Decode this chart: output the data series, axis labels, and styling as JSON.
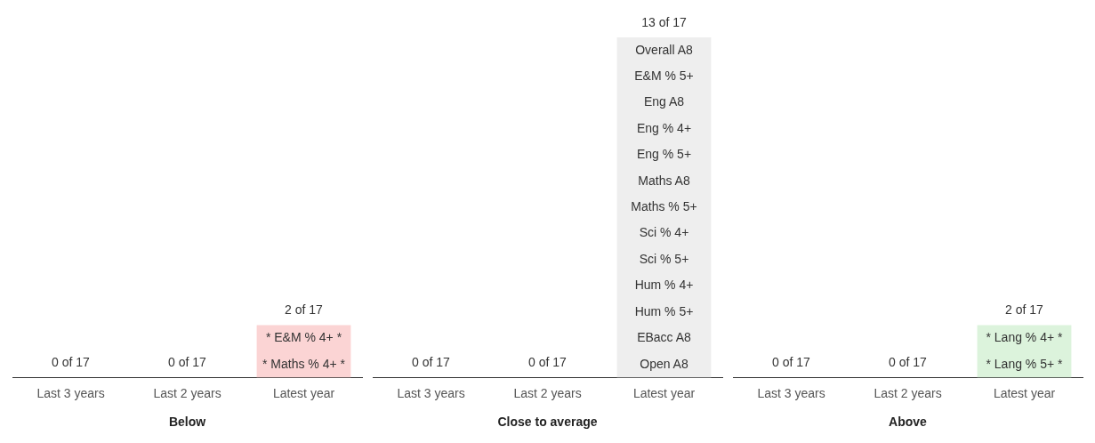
{
  "chart_data": [
    {
      "type": "bar",
      "xlabel": "Below",
      "categories": [
        "Last 3 years",
        "Last 2 years",
        "Latest year"
      ],
      "values": [
        0,
        0,
        2
      ],
      "colors": [
        "#fbd4d4",
        "#fbd4d4",
        "#fbd4d4"
      ],
      "value_labels": [
        "0 of 17",
        "0 of 17",
        "2 of 17"
      ],
      "tick_labels": "x",
      "grid": false,
      "legend": false,
      "annotations": [
        "* E&M % 4+ *",
        "* Maths % 4+ *"
      ]
    },
    {
      "type": "bar",
      "xlabel": "Close to average",
      "categories": [
        "Last 3 years",
        "Last 2 years",
        "Latest year"
      ],
      "values": [
        0,
        0,
        13
      ],
      "colors": [
        "#eeeeee",
        "#eeeeee",
        "#eeeeee"
      ],
      "value_labels": [
        "0 of 17",
        "0 of 17",
        "13 of 17"
      ],
      "tick_labels": "x",
      "grid": false,
      "legend": false,
      "annotations": [
        "Overall A8",
        "E&M % 5+",
        "Eng A8",
        "Eng % 4+",
        "Eng % 5+",
        "Maths A8",
        "Maths % 5+",
        "Sci % 4+",
        "Sci % 5+",
        "Hum % 4+",
        "Hum % 5+",
        "EBacc A8",
        "Open A8"
      ]
    },
    {
      "type": "bar",
      "xlabel": "Above",
      "categories": [
        "Last 3 years",
        "Last 2 years",
        "Latest year"
      ],
      "values": [
        0,
        0,
        2
      ],
      "colors": [
        "#dcf3dc",
        "#dcf3dc",
        "#dcf3dc"
      ],
      "value_labels": [
        "0 of 17",
        "0 of 17",
        "2 of 17"
      ],
      "tick_labels": "x",
      "grid": false,
      "legend": false,
      "annotations": [
        "* Lang % 4+ *",
        "* Lang % 5+ *"
      ]
    }
  ]
}
